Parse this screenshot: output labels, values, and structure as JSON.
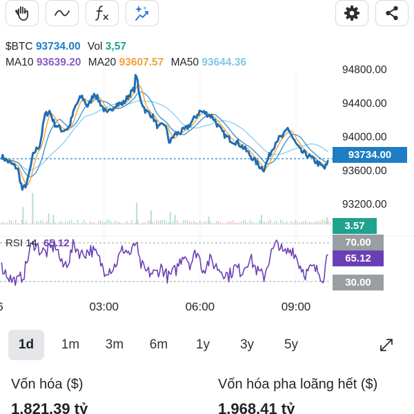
{
  "toolbar": {
    "left_tools": [
      {
        "icon": "hand-icon",
        "label": "pan"
      },
      {
        "icon": "wave-icon",
        "label": "indicator"
      },
      {
        "icon": "fx-icon",
        "label": "fx"
      },
      {
        "icon": "ai-sparkle-chart-icon",
        "label": "ai"
      }
    ],
    "right_tools": [
      {
        "icon": "gear-icon",
        "label": "settings"
      },
      {
        "icon": "share-icon",
        "label": "share"
      }
    ]
  },
  "legend": {
    "symbol": "$BTC",
    "price": "93734.00",
    "vol_label": "Vol",
    "vol": "3,57",
    "ma10_label": "MA10",
    "ma10": "93639.20",
    "ma20_label": "MA20",
    "ma20": "93607.57",
    "ma50_label": "MA50",
    "ma50": "93644.36"
  },
  "badges": {
    "price": "93734.00",
    "volume": "3.57",
    "rsi_upper": "70.00",
    "rsi_value": "65.12",
    "rsi_lower": "30.00"
  },
  "colors": {
    "price_line": "#1f6db2",
    "ma10": "#f0a23a",
    "ma20": "#2f8fce",
    "ma50": "#8fd0f0",
    "rsi": "#6a3fb5",
    "badge_price": "#1e7dc3",
    "badge_volume": "#21a18f",
    "badge_rsi": "#6a3fb5",
    "badge_rsi_bounds": "#9a9da2",
    "ma10_text": "#8a5cc4",
    "ma20_text": "#f0a23a",
    "ma50_text": "#7fc8ea",
    "price_text": "#1e7dc3",
    "vol_text": "#21a18f"
  },
  "chart_data": {
    "type": "line",
    "symbol": "$BTC",
    "y_ticks": [
      "94800.00",
      "94400.00",
      "94000.00",
      "93600.00",
      "93200.00"
    ],
    "x_ticks": [
      {
        "label": "03:00",
        "h": 3
      },
      {
        "label": "06:00",
        "h": 6
      },
      {
        "label": "09:00",
        "h": 9
      }
    ],
    "left_edge_partial_label": "6",
    "ylim": [
      93160,
      94800
    ],
    "xlim_hours": [
      -0.25,
      10.1
    ],
    "current_price": 93734,
    "price_anchors": [
      [
        -0.2,
        93760
      ],
      [
        0,
        93700
      ],
      [
        0.3,
        93620
      ],
      [
        0.45,
        93360
      ],
      [
        0.6,
        93450
      ],
      [
        0.8,
        93800
      ],
      [
        1.0,
        93900
      ],
      [
        1.15,
        94250
      ],
      [
        1.3,
        94300
      ],
      [
        1.45,
        94150
      ],
      [
        1.7,
        94070
      ],
      [
        1.9,
        94100
      ],
      [
        2.1,
        94350
      ],
      [
        2.3,
        94480
      ],
      [
        2.5,
        94350
      ],
      [
        2.7,
        94520
      ],
      [
        2.95,
        94350
      ],
      [
        3.1,
        94260
      ],
      [
        3.35,
        94380
      ],
      [
        3.6,
        94390
      ],
      [
        3.8,
        94500
      ],
      [
        3.95,
        94560
      ],
      [
        4.0,
        94780
      ],
      [
        4.1,
        94480
      ],
      [
        4.3,
        94300
      ],
      [
        4.5,
        94250
      ],
      [
        4.7,
        94100
      ],
      [
        4.9,
        94150
      ],
      [
        5.05,
        93920
      ],
      [
        5.2,
        94020
      ],
      [
        5.4,
        94050
      ],
      [
        5.6,
        94100
      ],
      [
        5.8,
        94200
      ],
      [
        6.0,
        94300
      ],
      [
        6.2,
        94270
      ],
      [
        6.4,
        94230
      ],
      [
        6.6,
        94100
      ],
      [
        6.8,
        94000
      ],
      [
        7.0,
        93950
      ],
      [
        7.2,
        93920
      ],
      [
        7.4,
        93850
      ],
      [
        7.6,
        93760
      ],
      [
        7.85,
        93650
      ],
      [
        8.0,
        93610
      ],
      [
        8.2,
        93800
      ],
      [
        8.4,
        93960
      ],
      [
        8.6,
        94000
      ],
      [
        8.75,
        94100
      ],
      [
        8.95,
        93940
      ],
      [
        9.15,
        93820
      ],
      [
        9.35,
        93780
      ],
      [
        9.55,
        93720
      ],
      [
        9.75,
        93660
      ],
      [
        9.9,
        93620
      ],
      [
        10.0,
        93690
      ]
    ],
    "rsi": {
      "label": "RSI 14",
      "value": "65.12",
      "upper": 70,
      "lower": 30,
      "ylim": [
        25,
        75
      ],
      "anchors": [
        [
          -0.2,
          45
        ],
        [
          0.1,
          32
        ],
        [
          0.3,
          30
        ],
        [
          0.5,
          38
        ],
        [
          0.7,
          65
        ],
        [
          0.85,
          70
        ],
        [
          1.0,
          62
        ],
        [
          1.2,
          60
        ],
        [
          1.5,
          68
        ],
        [
          1.7,
          45
        ],
        [
          1.9,
          52
        ],
        [
          2.05,
          68
        ],
        [
          2.3,
          58
        ],
        [
          2.6,
          63
        ],
        [
          2.8,
          56
        ],
        [
          3.0,
          42
        ],
        [
          3.3,
          44
        ],
        [
          3.6,
          64
        ],
        [
          3.85,
          58
        ],
        [
          4.0,
          72
        ],
        [
          4.1,
          50
        ],
        [
          4.3,
          40
        ],
        [
          4.6,
          38
        ],
        [
          4.8,
          45
        ],
        [
          5.0,
          34
        ],
        [
          5.25,
          42
        ],
        [
          5.5,
          60
        ],
        [
          5.7,
          48
        ],
        [
          5.9,
          62
        ],
        [
          6.1,
          42
        ],
        [
          6.3,
          52
        ],
        [
          6.6,
          43
        ],
        [
          6.9,
          36
        ],
        [
          7.1,
          45
        ],
        [
          7.3,
          40
        ],
        [
          7.55,
          55
        ],
        [
          7.8,
          40
        ],
        [
          8.0,
          35
        ],
        [
          8.2,
          58
        ],
        [
          8.45,
          71
        ],
        [
          8.6,
          58
        ],
        [
          8.9,
          64
        ],
        [
          9.1,
          48
        ],
        [
          9.3,
          38
        ],
        [
          9.5,
          44
        ],
        [
          9.7,
          40
        ],
        [
          9.85,
          34
        ],
        [
          10.0,
          62
        ]
      ]
    },
    "volume": {
      "current": "3.57",
      "spikes": [
        [
          0.45,
          0.55
        ],
        [
          0.75,
          1.0
        ],
        [
          1.25,
          0.35
        ],
        [
          1.4,
          0.3
        ],
        [
          4.0,
          0.7
        ],
        [
          4.45,
          0.45
        ],
        [
          5.05,
          0.4
        ],
        [
          5.2,
          0.3
        ],
        [
          6.25,
          0.25
        ],
        [
          7.9,
          0.3
        ],
        [
          9.95,
          0.22
        ]
      ]
    }
  },
  "ranges": [
    "1d",
    "1m",
    "3m",
    "6m",
    "1y",
    "3y",
    "5y"
  ],
  "active_range": "1d",
  "stats": {
    "left_label": "Vốn hóa ($)",
    "left_value": "1.821,39 tỷ",
    "right_label": "Vốn hóa pha loãng hết ($)",
    "right_value": "1.968,41 tỷ"
  }
}
